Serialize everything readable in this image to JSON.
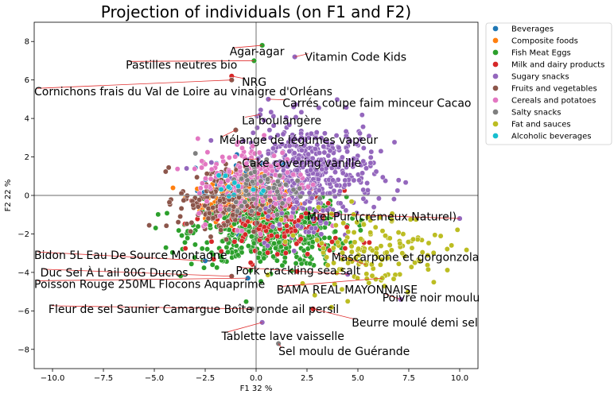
{
  "chart_data": {
    "type": "scatter",
    "title": "Projection of individuals (on F1 and F2)",
    "xlabel": "F1 32 %",
    "ylabel": "F2 22 %",
    "xlim": [
      -10.9,
      10.9
    ],
    "ylim": [
      -9.0,
      9.0
    ],
    "xticks": [
      -10.0,
      -7.5,
      -5.0,
      -2.5,
      0.0,
      2.5,
      5.0,
      7.5,
      10.0
    ],
    "xtick_labels": [
      "−10.0",
      "−7.5",
      "−5.0",
      "−2.5",
      "0.0",
      "2.5",
      "5.0",
      "7.5",
      "10.0"
    ],
    "yticks": [
      -8,
      -6,
      -4,
      -2,
      0,
      2,
      4,
      6,
      8
    ],
    "ytick_labels": [
      "−8",
      "−6",
      "−4",
      "−2",
      "0",
      "2",
      "4",
      "6",
      "8"
    ],
    "grid": false,
    "legend_position": "outside-right",
    "series": [
      {
        "name": "Beverages",
        "color": "#1f77b4",
        "center": [
          -0.5,
          0.3
        ],
        "spread": [
          1.2,
          0.9
        ],
        "count": 60
      },
      {
        "name": "Composite foods",
        "color": "#ff7f0e",
        "center": [
          -0.6,
          -0.3
        ],
        "spread": [
          1.0,
          0.6
        ],
        "count": 260
      },
      {
        "name": "Fish Meat Eggs",
        "color": "#2ca02c",
        "center": [
          0.6,
          -1.9
        ],
        "spread": [
          1.9,
          0.9
        ],
        "count": 520
      },
      {
        "name": "Milk and dairy products",
        "color": "#d62728",
        "center": [
          1.0,
          -1.6
        ],
        "spread": [
          2.0,
          0.9
        ],
        "count": 120
      },
      {
        "name": "Sugary snacks",
        "color": "#9467bd",
        "center": [
          2.6,
          1.2
        ],
        "spread": [
          1.6,
          1.3
        ],
        "count": 480
      },
      {
        "name": "Fruits and vegetables",
        "color": "#8c564b",
        "center": [
          -1.6,
          -0.2
        ],
        "spread": [
          1.1,
          0.9
        ],
        "count": 200
      },
      {
        "name": "Cereals and potatoes",
        "color": "#e377c2",
        "center": [
          -0.2,
          0.8
        ],
        "spread": [
          1.4,
          1.1
        ],
        "count": 160
      },
      {
        "name": "Salty snacks",
        "color": "#7f7f7f",
        "center": [
          0.4,
          0.5
        ],
        "spread": [
          1.0,
          0.8
        ],
        "count": 60
      },
      {
        "name": "Fat and sauces",
        "color": "#bcbd22",
        "center": [
          5.6,
          -2.8
        ],
        "spread": [
          1.8,
          1.0
        ],
        "count": 140
      },
      {
        "name": "Alcoholic beverages",
        "color": "#17becf",
        "center": [
          -0.6,
          0.4
        ],
        "spread": [
          0.7,
          0.5
        ],
        "count": 12
      }
    ],
    "highlighted_points": [
      {
        "label": "Agar-agar",
        "x": 0.3,
        "y": 7.8,
        "tx": -1.3,
        "ty": 7.5,
        "color": "#2ca02c"
      },
      {
        "label": "Vitamin Code Kids",
        "x": 1.9,
        "y": 7.2,
        "tx": 2.4,
        "ty": 7.2,
        "color": "#9467bd"
      },
      {
        "label": "Pastilles neutres bio",
        "x": -0.1,
        "y": 7.0,
        "tx": -6.4,
        "ty": 6.8,
        "color": "#2ca02c"
      },
      {
        "label": "NRG",
        "x": -1.2,
        "y": 6.2,
        "tx": -0.7,
        "ty": 5.9,
        "color": "#d62728"
      },
      {
        "label": "Cornichons frais du Val de Loire au vinaigre d'Orléans",
        "x": -1.2,
        "y": 6.0,
        "tx": -10.9,
        "ty": 5.4,
        "color": "#8c564b"
      },
      {
        "label": "Carrés coupe faim minceur Cacao",
        "x": 0.6,
        "y": 5.0,
        "tx": 1.3,
        "ty": 4.8,
        "color": "#9467bd"
      },
      {
        "label": "La boulangère",
        "x": 0.2,
        "y": 4.2,
        "tx": -0.7,
        "ty": 3.9,
        "color": "#9467bd"
      },
      {
        "label": "Mélange de légumes vapeur",
        "x": -1.0,
        "y": 3.4,
        "tx": -1.8,
        "ty": 2.9,
        "color": "#8c564b"
      },
      {
        "label": "Cake covering vanille",
        "x": 0.1,
        "y": 1.9,
        "tx": -0.7,
        "ty": 1.7,
        "color": "#9467bd"
      },
      {
        "label": "Miel Pur (crémeux Naturel)",
        "x": 10.0,
        "y": -1.2,
        "tx": 2.5,
        "ty": -1.1,
        "color": "#9467bd"
      },
      {
        "label": "Mascarpone et gorgonzola",
        "x": 5.4,
        "y": -3.6,
        "tx": 3.7,
        "ty": -3.2,
        "color": "#bcbd22"
      },
      {
        "label": "Bidon 5L Eau De Source Montagne",
        "x": -2.5,
        "y": -3.4,
        "tx": -10.9,
        "ty": -3.1,
        "color": "#1f77b4"
      },
      {
        "label": "Pork crackling sea salt",
        "x": 4.5,
        "y": -4.1,
        "tx": -1.0,
        "ty": -3.9,
        "color": "#9467bd"
      },
      {
        "label": "Duc Sel À L'ail 80G Ducros",
        "x": -1.2,
        "y": -4.2,
        "tx": -10.6,
        "ty": -4.0,
        "color": "#8c564b"
      },
      {
        "label": "BAMA REAL MAYONNAISE",
        "x": 6.2,
        "y": -4.3,
        "tx": 1.0,
        "ty": -4.9,
        "color": "#bcbd22"
      },
      {
        "label": "Poisson Rouge 250ML Flocons Aquaprime",
        "x": -0.4,
        "y": -4.3,
        "tx": -10.9,
        "ty": -4.6,
        "color": "#1f77b4"
      },
      {
        "label": "Poivre noir moulu",
        "x": 7.1,
        "y": -5.4,
        "tx": 6.2,
        "ty": -5.3,
        "color": "#9467bd"
      },
      {
        "label": "Fleur de sel Saunier Camargue Boîte ronde ail persil",
        "x": -0.2,
        "y": -5.9,
        "tx": -10.2,
        "ty": -5.9,
        "color": "#7f7f7f"
      },
      {
        "label": "Beurre moulé demi sel",
        "x": 2.8,
        "y": -5.9,
        "tx": 4.7,
        "ty": -6.6,
        "color": "#d62728"
      },
      {
        "label": "Tablette lave vaisselle",
        "x": 0.3,
        "y": -6.6,
        "tx": -1.7,
        "ty": -7.3,
        "color": "#9467bd"
      },
      {
        "label": "Sel moulu de Guérande",
        "x": 1.1,
        "y": -7.7,
        "tx": 1.1,
        "ty": -8.1,
        "color": "#7f7f7f"
      }
    ]
  }
}
